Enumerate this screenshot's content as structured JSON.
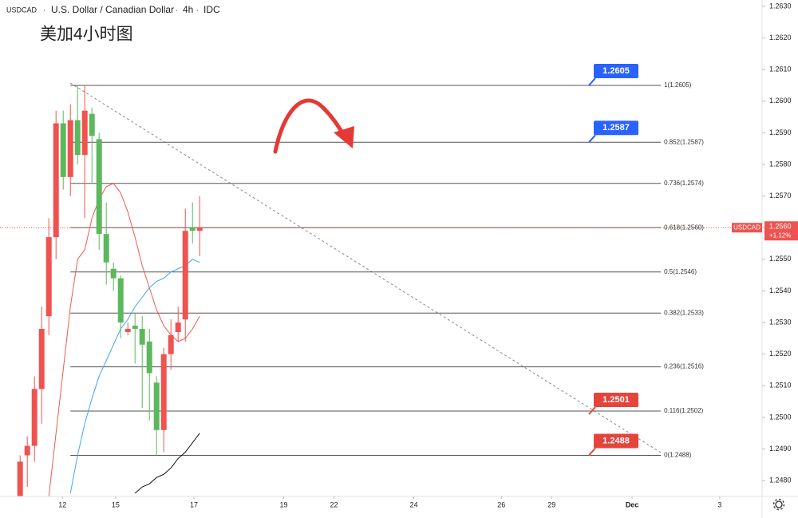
{
  "chart_data": {
    "type": "candlestick",
    "title_parts": [
      "USDCAD",
      "U.S. Dollar / Canadian Dollar",
      "4h",
      "IDC"
    ],
    "annotation": "美加4小时图",
    "up_color": "#ef5350",
    "down_color": "#5cb85c",
    "ylim": [
      1.2475,
      1.2632
    ],
    "yticks": [
      {
        "value": 1.263,
        "label": "1.2630"
      },
      {
        "value": 1.262,
        "label": "1.2620"
      },
      {
        "value": 1.261,
        "label": "1.2610"
      },
      {
        "value": 1.26,
        "label": "1.2600"
      },
      {
        "value": 1.259,
        "label": "1.2590"
      },
      {
        "value": 1.258,
        "label": "1.2580"
      },
      {
        "value": 1.257,
        "label": "1.2570"
      },
      {
        "value": 1.256,
        "label": "1.2560"
      },
      {
        "value": 1.255,
        "label": "1.2550"
      },
      {
        "value": 1.254,
        "label": "1.2540"
      },
      {
        "value": 1.253,
        "label": "1.2530"
      },
      {
        "value": 1.252,
        "label": "1.2520"
      },
      {
        "value": 1.251,
        "label": "1.2510"
      },
      {
        "value": 1.25,
        "label": "1.2500"
      },
      {
        "value": 1.249,
        "label": "1.2490"
      },
      {
        "value": 1.248,
        "label": "1.2480"
      }
    ],
    "xlim": [
      -2.8,
      103.3
    ],
    "xticks": [
      {
        "value": 5.9,
        "label": "12"
      },
      {
        "value": 13.3,
        "label": "15"
      },
      {
        "value": 24.2,
        "label": "17"
      },
      {
        "value": 36.7,
        "label": "19"
      },
      {
        "value": 43.7,
        "label": "22"
      },
      {
        "value": 54.8,
        "label": "24"
      },
      {
        "value": 67,
        "label": "26"
      },
      {
        "value": 74,
        "label": "29"
      },
      {
        "value": 85.2,
        "label": "Dec"
      },
      {
        "value": 97.4,
        "label": "3"
      }
    ],
    "candles": [
      {
        "open": 1.2474,
        "high": 1.2488,
        "low": 1.247,
        "close": 1.2486
      },
      {
        "open": 1.2488,
        "high": 1.2494,
        "low": 1.2478,
        "close": 1.2491
      },
      {
        "open": 1.2491,
        "high": 1.2513,
        "low": 1.2486,
        "close": 1.2509
      },
      {
        "open": 1.2509,
        "high": 1.2535,
        "low": 1.2498,
        "close": 1.2528
      },
      {
        "open": 1.2532,
        "high": 1.2563,
        "low": 1.2526,
        "close": 1.2557
      },
      {
        "open": 1.2557,
        "high": 1.2597,
        "low": 1.255,
        "close": 1.2593
      },
      {
        "open": 1.2593,
        "high": 1.2597,
        "low": 1.2572,
        "close": 1.2576
      },
      {
        "open": 1.2576,
        "high": 1.2599,
        "low": 1.257,
        "close": 1.2594
      },
      {
        "open": 1.2594,
        "high": 1.2605,
        "low": 1.258,
        "close": 1.2583
      },
      {
        "open": 1.2583,
        "high": 1.2605,
        "low": 1.2563,
        "close": 1.2597
      },
      {
        "open": 1.2596,
        "high": 1.2598,
        "low": 1.2574,
        "close": 1.2589
      },
      {
        "open": 1.2588,
        "high": 1.259,
        "low": 1.2553,
        "close": 1.2558
      },
      {
        "open": 1.2558,
        "high": 1.2568,
        "low": 1.2542,
        "close": 1.2549
      },
      {
        "open": 1.2547,
        "high": 1.2549,
        "low": 1.254,
        "close": 1.2544
      },
      {
        "open": 1.2544,
        "high": 1.2545,
        "low": 1.2525,
        "close": 1.253
      },
      {
        "open": 1.2527,
        "high": 1.253,
        "low": 1.2526,
        "close": 1.2528
      },
      {
        "open": 1.2529,
        "high": 1.2533,
        "low": 1.2517,
        "close": 1.2528
      },
      {
        "open": 1.2528,
        "high": 1.2532,
        "low": 1.2503,
        "close": 1.2523
      },
      {
        "open": 1.2524,
        "high": 1.2528,
        "low": 1.2499,
        "close": 1.2514
      },
      {
        "open": 1.2511,
        "high": 1.2513,
        "low": 1.2488,
        "close": 1.2496
      },
      {
        "open": 1.2496,
        "high": 1.2522,
        "low": 1.2489,
        "close": 1.252
      },
      {
        "open": 1.252,
        "high": 1.2531,
        "low": 1.2515,
        "close": 1.2526
      },
      {
        "open": 1.2527,
        "high": 1.2535,
        "low": 1.2524,
        "close": 1.253
      },
      {
        "open": 1.2531,
        "high": 1.2566,
        "low": 1.2524,
        "close": 1.2559
      },
      {
        "open": 1.256,
        "high": 1.2568,
        "low": 1.2555,
        "close": 1.2559
      },
      {
        "open": 1.2559,
        "high": 1.257,
        "low": 1.2551,
        "close": 1.256
      }
    ],
    "series": [
      {
        "color": "#f05a4e",
        "values": [
          null,
          null,
          null,
          null,
          1.2475,
          1.2495,
          1.2515,
          1.2535,
          1.255,
          1.2553,
          1.2563,
          1.2569,
          1.2573,
          1.2574,
          1.2571,
          1.2565,
          1.2557,
          1.2548,
          1.2541,
          1.2534,
          1.2529,
          1.2526,
          1.2524,
          1.2525,
          1.2528,
          1.2532
        ]
      },
      {
        "color": "#42a5f5",
        "values": [
          null,
          null,
          null,
          null,
          null,
          null,
          null,
          1.2476,
          1.2488,
          1.2498,
          1.2506,
          1.2513,
          1.2518,
          1.2523,
          1.2528,
          1.2531,
          1.2535,
          1.2538,
          1.2541,
          1.2543,
          1.2544,
          1.2546,
          1.2547,
          1.2548,
          1.255,
          1.2549
        ]
      },
      {
        "color": "#111111",
        "values": [
          null,
          null,
          null,
          null,
          null,
          null,
          null,
          null,
          null,
          null,
          null,
          null,
          null,
          null,
          null,
          null,
          1.2476,
          1.2478,
          1.2479,
          1.2481,
          1.2482,
          1.2484,
          1.2487,
          1.2489,
          1.2492,
          1.2495
        ]
      }
    ],
    "fib_levels": [
      {
        "label": "1(1.2605)",
        "value": 1.2605
      },
      {
        "label": "0.852(1.2587)",
        "value": 1.2587
      },
      {
        "label": "0.736(1.2574)",
        "value": 1.2574
      },
      {
        "label": "0.618(1.2560)",
        "value": 1.256
      },
      {
        "label": "0.5(1.2546)",
        "value": 1.2546
      },
      {
        "label": "0.382(1.2533)",
        "value": 1.2533
      },
      {
        "label": "0.236(1.2516)",
        "value": 1.2516
      },
      {
        "label": "0.116(1.2502)",
        "value": 1.2502
      },
      {
        "label": "0(1.2488)",
        "value": 1.2488
      }
    ],
    "callouts": [
      {
        "value": 1.2605,
        "color": "#2962ff"
      },
      {
        "value": 1.2587,
        "color": "#2962ff"
      },
      {
        "value": 1.2501,
        "color": "#e5443b"
      },
      {
        "value": 1.2488,
        "color": "#e5443b"
      }
    ],
    "last_price": {
      "value": 1.256,
      "label": "1.2560"
    },
    "symbol_tag": "USDCAD",
    "change_label": "+1.12%"
  }
}
